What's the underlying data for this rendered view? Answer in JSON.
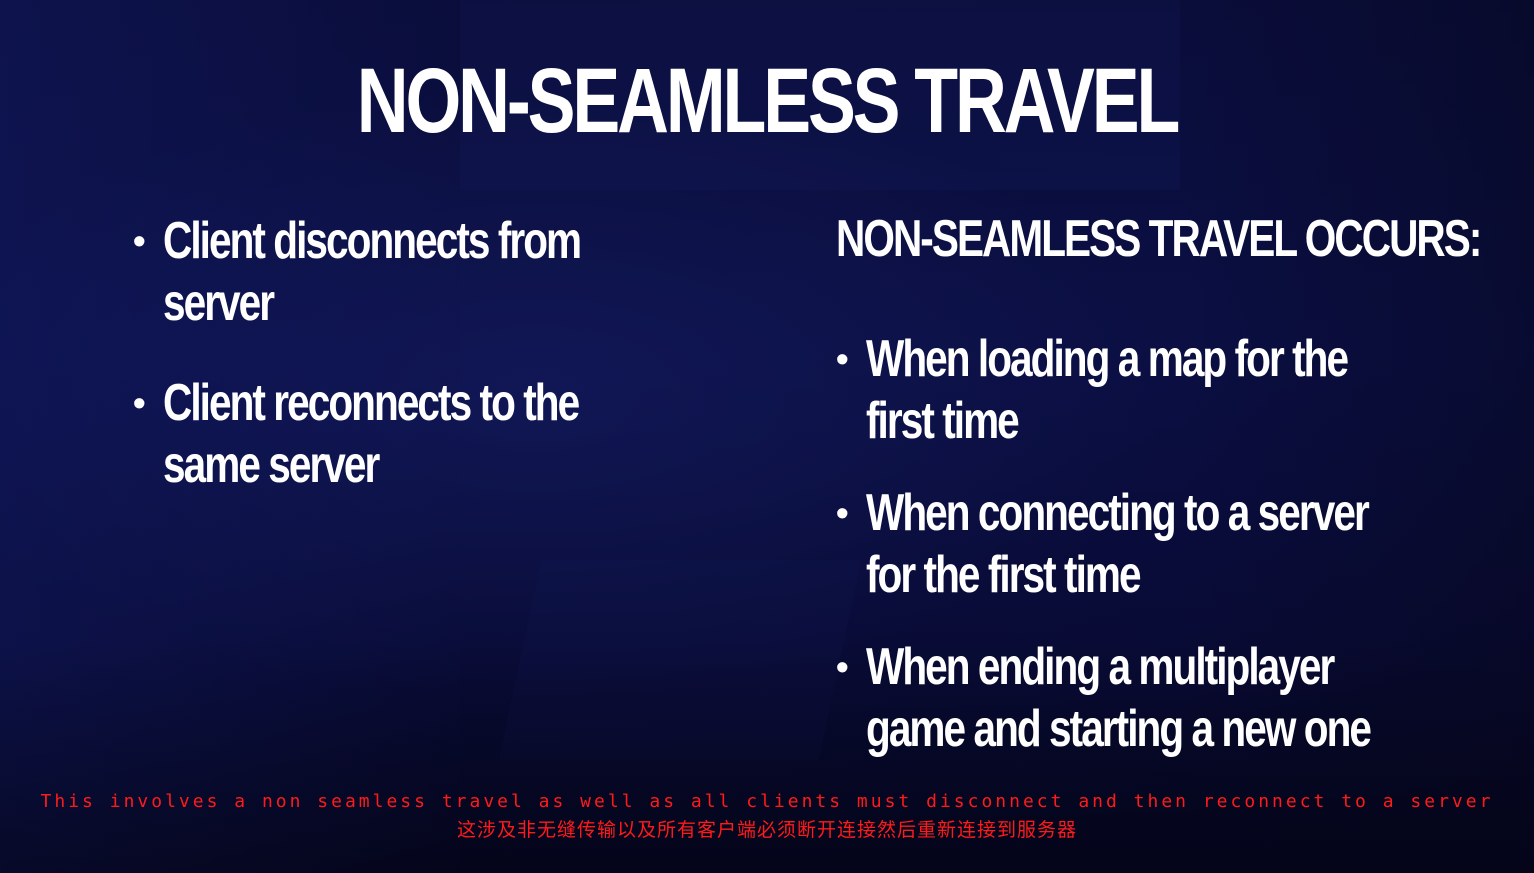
{
  "slide": {
    "title": "NON-SEAMLESS TRAVEL",
    "left_bullets": [
      {
        "text": "Client disconnects from server"
      },
      {
        "text": "Client reconnects to the same server"
      }
    ],
    "right_heading": "NON-SEAMLESS TRAVEL OCCURS:",
    "right_bullets": [
      {
        "text": "When loading a map for the first time"
      },
      {
        "text": "When connecting to a server for the first time"
      },
      {
        "text": "When ending a multiplayer game and starting a new one"
      }
    ],
    "bullet_glyph": "•"
  },
  "subtitles": {
    "english": "This involves a non seamless travel as well as all clients must disconnect and then reconnect to a server",
    "chinese": "这涉及非无缝传输以及所有客户端必须断开连接然后重新连接到服务器",
    "color": "#ff1a1a"
  },
  "colors": {
    "background": "#0a0d3a",
    "text": "#ffffff"
  }
}
